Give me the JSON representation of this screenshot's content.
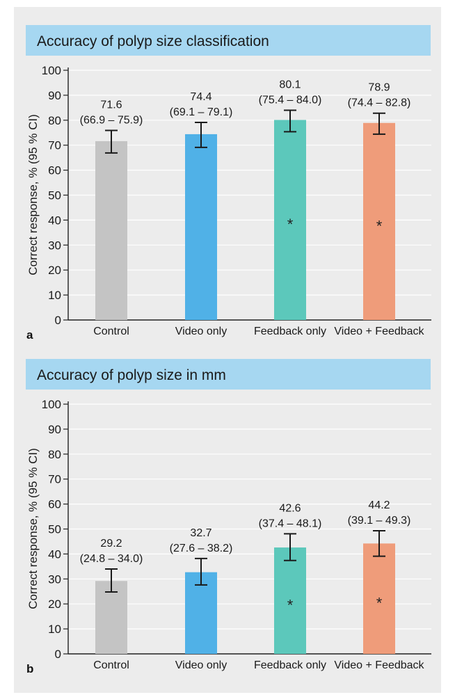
{
  "chart_data": [
    {
      "type": "bar",
      "panel": "a",
      "title": "Accuracy of polyp size classification",
      "ylabel": "Correct response, % (95 % CI)",
      "xlabel": "",
      "ylim": [
        0,
        100
      ],
      "yticks": [
        0,
        10,
        20,
        30,
        40,
        50,
        60,
        70,
        80,
        90,
        100
      ],
      "grid": true,
      "categories": [
        "Control",
        "Video only",
        "Feedback only",
        "Video + Feedback"
      ],
      "values": [
        71.6,
        74.4,
        80.1,
        78.9
      ],
      "ci_low": [
        66.9,
        69.1,
        75.4,
        74.4
      ],
      "ci_high": [
        75.9,
        79.1,
        84.0,
        82.8
      ],
      "value_labels": [
        "71.6",
        "74.4",
        "80.1",
        "78.9"
      ],
      "ci_labels": [
        "(66.9 – 75.9)",
        "(69.1 – 79.1)",
        "(75.4 – 84.0)",
        "(74.4 – 82.8)"
      ],
      "significant": [
        false,
        false,
        true,
        true
      ],
      "significance_marker": "*",
      "colors": [
        "#c4c4c4",
        "#50b1e7",
        "#5cc8bb",
        "#ef9c7a"
      ]
    },
    {
      "type": "bar",
      "panel": "b",
      "title": "Accuracy of polyp size in mm",
      "ylabel": "Correct response, % (95 % CI)",
      "xlabel": "",
      "ylim": [
        0,
        100
      ],
      "yticks": [
        0,
        10,
        20,
        30,
        40,
        50,
        60,
        70,
        80,
        90,
        100
      ],
      "grid": true,
      "categories": [
        "Control",
        "Video only",
        "Feedback only",
        "Video + Feedback"
      ],
      "values": [
        29.2,
        32.7,
        42.6,
        44.2
      ],
      "ci_low": [
        24.8,
        27.6,
        37.4,
        39.1
      ],
      "ci_high": [
        34.0,
        38.2,
        48.1,
        49.3
      ],
      "value_labels": [
        "29.2",
        "32.7",
        "42.6",
        "44.2"
      ],
      "ci_labels": [
        "(24.8 – 34.0)",
        "(27.6 – 38.2)",
        "(37.4 – 48.1)",
        "(39.1 – 49.3)"
      ],
      "significant": [
        false,
        false,
        true,
        true
      ],
      "significance_marker": "*",
      "colors": [
        "#c4c4c4",
        "#50b1e7",
        "#5cc8bb",
        "#ef9c7a"
      ]
    }
  ]
}
